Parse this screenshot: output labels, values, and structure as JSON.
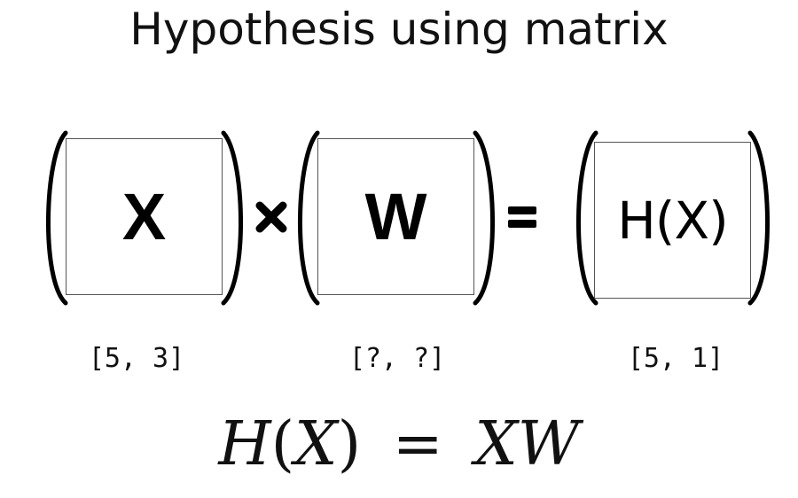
{
  "title": "Hypothesis using matrix",
  "matrices": [
    {
      "label": "X",
      "dims": "[5, 3]"
    },
    {
      "label": "W",
      "dims": "[?, ?]"
    },
    {
      "label": "H(X)",
      "dims": "[5, 1]"
    }
  ],
  "operators": {
    "multiply": "×",
    "equals": "="
  },
  "formula": {
    "lhs_symbol": "H",
    "lhs_open": "(",
    "lhs_arg": "X",
    "lhs_close": ")",
    "equals": "=",
    "rhs": "XW"
  }
}
